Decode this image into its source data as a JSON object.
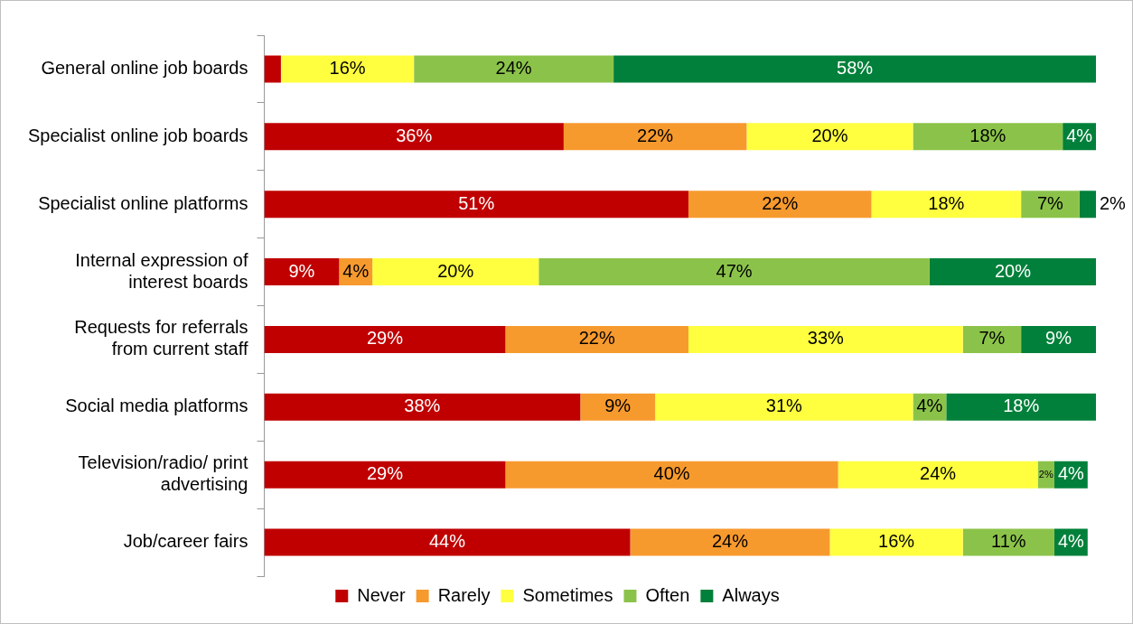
{
  "chart_data": {
    "type": "bar",
    "orientation": "horizontal",
    "stacked": true,
    "categories": [
      "General online job boards",
      "Specialist online job boards",
      "Specialist online platforms",
      "Internal expression of interest boards",
      "Requests for referrals from current staff",
      "Social media platforms",
      "Television/radio/ print advertising",
      "Job/career fairs"
    ],
    "series": [
      {
        "name": "Never",
        "color": "#c00000",
        "values": [
          2,
          36,
          51,
          9,
          29,
          38,
          29,
          44
        ],
        "value_labels": [
          null,
          "36%",
          "51%",
          "9%",
          "29%",
          "38%",
          "29%",
          "44%"
        ]
      },
      {
        "name": "Rarely",
        "color": "#f79a2e",
        "values": [
          0,
          22,
          22,
          4,
          22,
          9,
          40,
          24
        ],
        "value_labels": [
          null,
          "22%",
          "22%",
          "4%",
          "22%",
          "9%",
          "40%",
          "24%"
        ]
      },
      {
        "name": "Sometimes",
        "color": "#ffff40",
        "values": [
          16,
          20,
          18,
          20,
          33,
          31,
          24,
          16
        ],
        "value_labels": [
          "16%",
          "20%",
          "18%",
          "20%",
          "33%",
          "31%",
          "24%",
          "16%"
        ]
      },
      {
        "name": "Often",
        "color": "#8bc34a",
        "values": [
          24,
          18,
          7,
          47,
          7,
          4,
          2,
          11
        ],
        "value_labels": [
          "24%",
          "18%",
          "7%",
          "47%",
          "7%",
          "4%",
          "2%",
          "11%"
        ]
      },
      {
        "name": "Always",
        "color": "#00803a",
        "values": [
          58,
          4,
          2,
          20,
          9,
          18,
          4,
          4
        ],
        "value_labels": [
          "58%",
          "4%",
          "2%",
          "20%",
          "9%",
          "18%",
          "4%",
          "4%"
        ]
      }
    ],
    "xlim": [
      0,
      100
    ],
    "tick_labels": "y",
    "legend": "bottom"
  }
}
